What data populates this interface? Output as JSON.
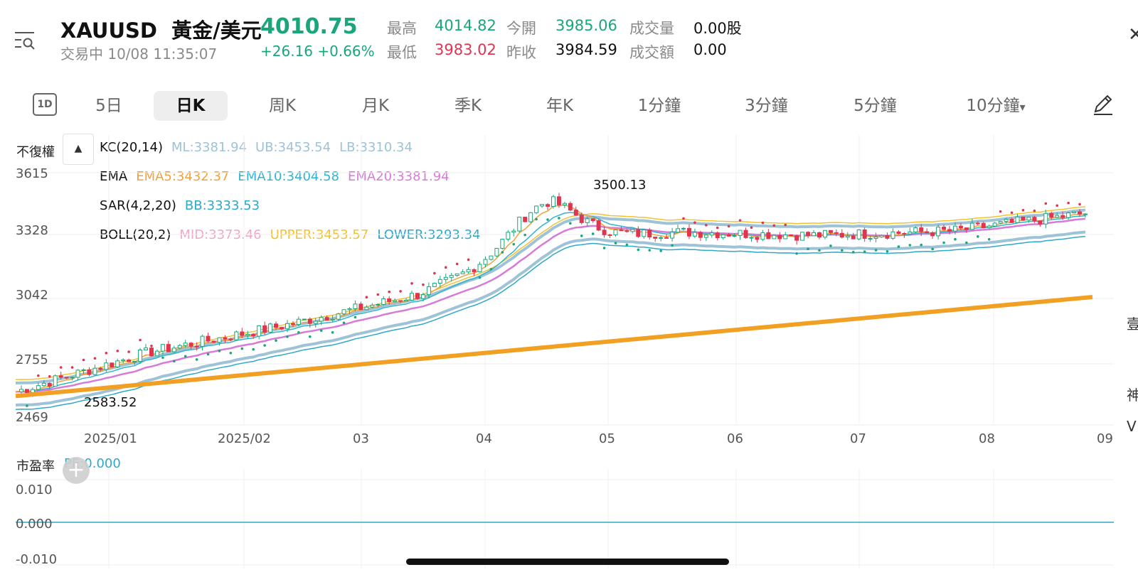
{
  "header": {
    "symbol": "XAUUSD",
    "name": "黃金/美元",
    "price": "4010.75",
    "status": "交易中 10/08 11:35:07",
    "change": "+26.16 +0.66%",
    "quotes": [
      {
        "label": "最高",
        "value": "4014.82",
        "color": "green"
      },
      {
        "label": "今開",
        "value": "3985.06",
        "color": "green"
      },
      {
        "label": "成交量",
        "value": "0.00股",
        "color": "dark"
      },
      {
        "label": "最低",
        "value": "3983.02",
        "color": "red"
      },
      {
        "label": "昨收",
        "value": "3984.59",
        "color": "dark"
      },
      {
        "label": "成交額",
        "value": "0.00",
        "color": "dark"
      }
    ]
  },
  "tabs": {
    "icon_label": "1D",
    "items": [
      "5日",
      "日K",
      "周K",
      "月K",
      "季K",
      "年K",
      "1分鐘",
      "3分鐘",
      "5分鐘",
      "10分鐘"
    ],
    "active": "日K",
    "dropdown_arrow": "▾"
  },
  "chart_header": {
    "adjust_label": "不復權",
    "collapse_arrow": "▲",
    "indicators": [
      {
        "name": "KC(20,14)",
        "values": [
          {
            "text": "ML:3381.94",
            "color": "#9ec3d6"
          },
          {
            "text": "UB:3453.54",
            "color": "#9ec3d6"
          },
          {
            "text": "LB:3310.34",
            "color": "#9ec3d6"
          }
        ]
      },
      {
        "name": "EMA",
        "values": [
          {
            "text": "EMA5:3432.37",
            "color": "#f2a23c"
          },
          {
            "text": "EMA10:3404.58",
            "color": "#31b3cf"
          },
          {
            "text": "EMA20:3381.94",
            "color": "#d67bd6"
          }
        ]
      },
      {
        "name": "SAR(4,2,20)",
        "values": [
          {
            "text": "BB:3333.53",
            "color": "#2fa9c8"
          }
        ]
      },
      {
        "name": "BOLL(20,2)",
        "values": [
          {
            "text": "MID:3373.46",
            "color": "#f0a7c4"
          },
          {
            "text": "UPPER:3453.57",
            "color": "#f2c230"
          },
          {
            "text": "LOWER:3293.34",
            "color": "#2fa9c8"
          }
        ]
      }
    ]
  },
  "chart_data": {
    "type": "line",
    "series": [
      {
        "x": [
          "2025/01",
          "2025/02",
          "03",
          "04",
          "05",
          "06",
          "07",
          "08",
          "09"
        ],
        "values": [
          2620,
          2800,
          2920,
          3060,
          3320,
          3345,
          3330,
          3350,
          3430
        ]
      }
    ],
    "y_ticks": [
      "3615",
      "3328",
      "3042",
      "2755",
      "2469"
    ],
    "x_ticks": [
      "2025/01",
      "2025/02",
      "03",
      "04",
      "05",
      "06",
      "07",
      "08",
      "09"
    ],
    "ylim": [
      2469,
      3615
    ],
    "annotations": [
      {
        "text": "3500.13",
        "x": "04",
        "y": 3500.13
      },
      {
        "text": "2583.52",
        "x": "2025/01",
        "y": 2583.52
      }
    ],
    "trendline": {
      "color": "#f2a023",
      "from": 2600,
      "to": 3050
    },
    "grid": true
  },
  "lower_panel": {
    "title": "市盈率",
    "value": "PE:0.000",
    "y_ticks": [
      "0.010",
      "0.000",
      "-0.010"
    ],
    "add_label": "+"
  },
  "colors": {
    "green": "#1aa67b",
    "red": "#e0344f",
    "kc": "#9ec3d6",
    "ema5": "#f2a23c",
    "ema10": "#31b3cf",
    "ema20": "#d67bd6",
    "trend": "#f2a023"
  },
  "right_edge_chars": [
    "壹",
    "神",
    "V"
  ]
}
